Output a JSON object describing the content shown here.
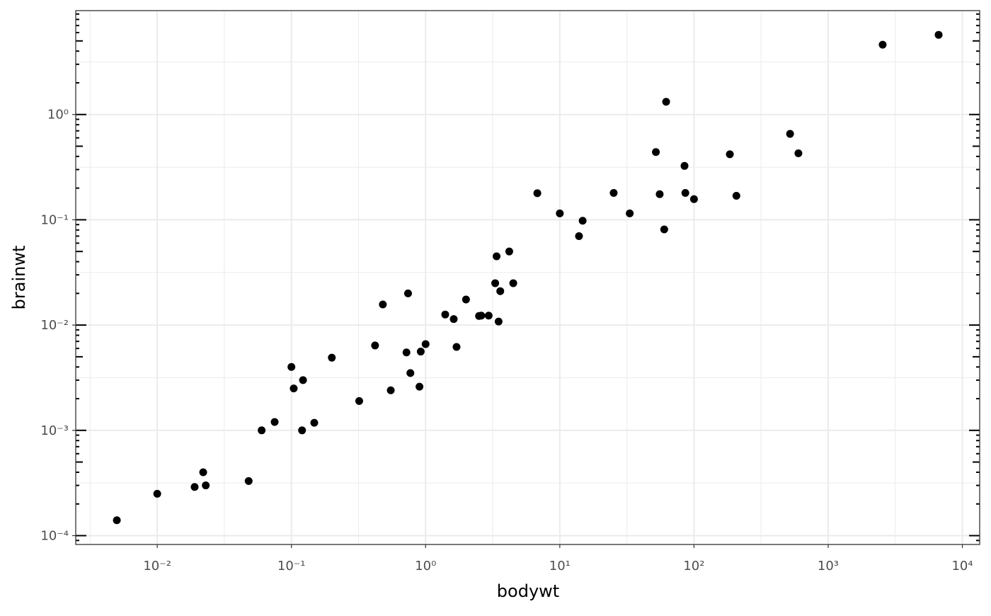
{
  "chart_data": {
    "type": "scatter",
    "x_label": "bodywt",
    "y_label": "brainwt",
    "x_scale": "log",
    "y_scale": "log",
    "grid": true,
    "logticks": "lr",
    "color": "#000000",
    "xlim": [
      0.00247,
      13458
    ],
    "ylim": [
      8.24e-05,
      9.7
    ],
    "xticks": [
      {
        "value": 0.01,
        "label": "10⁻²"
      },
      {
        "value": 0.1,
        "label": "10⁻¹"
      },
      {
        "value": 1,
        "label": "10⁰"
      },
      {
        "value": 10,
        "label": "10¹"
      },
      {
        "value": 100,
        "label": "10²"
      },
      {
        "value": 1000,
        "label": "10³"
      },
      {
        "value": 10000,
        "label": "10⁴"
      }
    ],
    "yticks": [
      {
        "value": 0.0001,
        "label": "10⁻⁴"
      },
      {
        "value": 0.001,
        "label": "10⁻³"
      },
      {
        "value": 0.01,
        "label": "10⁻²"
      },
      {
        "value": 0.1,
        "label": "10⁻¹"
      },
      {
        "value": 1,
        "label": "10⁰"
      }
    ],
    "series": [
      {
        "x": [
          0.005,
          0.01,
          0.019,
          0.022,
          0.023,
          0.048,
          0.06,
          0.075,
          0.1,
          0.104,
          0.12,
          0.122,
          0.148,
          0.2,
          0.32,
          0.42,
          0.48,
          0.55,
          0.72,
          0.74,
          0.77,
          0.9,
          0.92,
          1.0,
          1.4,
          1.62,
          1.7,
          2.0,
          2.5,
          2.6,
          2.95,
          3.3,
          3.38,
          3.5,
          3.6,
          4.2,
          4.5,
          6.8,
          10,
          13.9,
          14.8,
          25.2,
          33.2,
          52,
          55.5,
          60,
          62,
          85,
          86.2,
          100,
          185,
          207,
          520,
          600,
          2547,
          6654
        ],
        "values": [
          0.00014,
          0.00025,
          0.00029,
          0.0004,
          0.0003,
          0.00033,
          0.001,
          0.0012,
          0.004,
          0.0025,
          0.001,
          0.003,
          0.00118,
          0.0049,
          0.0019,
          0.0064,
          0.0157,
          0.0024,
          0.0055,
          0.02,
          0.0035,
          0.0026,
          0.0056,
          0.0066,
          0.0126,
          0.0114,
          0.0062,
          0.0175,
          0.0122,
          0.0123,
          0.0123,
          0.025,
          0.045,
          0.0108,
          0.021,
          0.05,
          0.025,
          0.179,
          0.115,
          0.07,
          0.098,
          0.18,
          0.115,
          0.44,
          0.175,
          0.081,
          1.32,
          0.325,
          0.18,
          0.157,
          0.419,
          0.169,
          0.655,
          0.428,
          4.603,
          5.712
        ]
      }
    ]
  }
}
